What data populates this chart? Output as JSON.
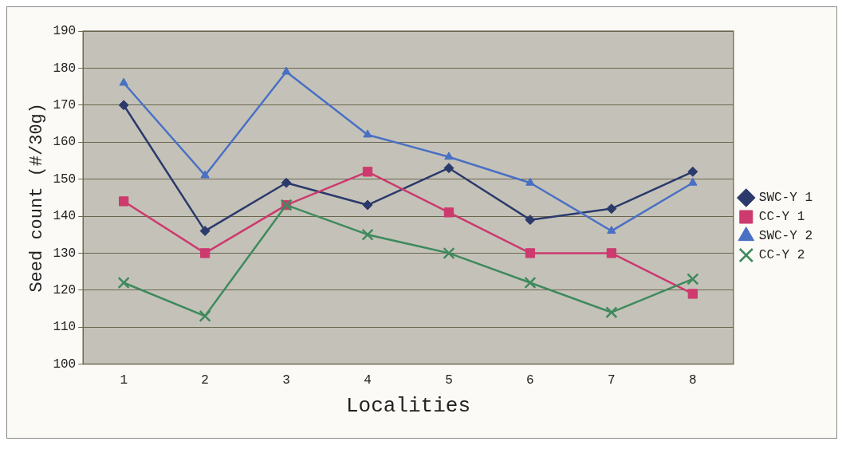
{
  "chart_data": {
    "type": "line",
    "xlabel": "Localities",
    "ylabel": "Seed count (#/30g)",
    "categories": [
      "1",
      "2",
      "3",
      "4",
      "5",
      "6",
      "7",
      "8"
    ],
    "series": [
      {
        "name": "SWC-Y 1",
        "color": "#2b3a6b",
        "marker": "diamond",
        "values": [
          170,
          136,
          149,
          143,
          153,
          139,
          142,
          152
        ]
      },
      {
        "name": "CC-Y 1",
        "color": "#cc3a6e",
        "marker": "square",
        "values": [
          144,
          130,
          143,
          152,
          141,
          130,
          130,
          119
        ]
      },
      {
        "name": "SWC-Y 2",
        "color": "#4a70c4",
        "marker": "triangle",
        "values": [
          176,
          151,
          179,
          162,
          156,
          149,
          136,
          149
        ]
      },
      {
        "name": "CC-Y 2",
        "color": "#3f8a5e",
        "marker": "cross",
        "values": [
          122,
          113,
          143,
          135,
          130,
          122,
          114,
          123
        ]
      }
    ],
    "ylim": [
      100,
      190
    ],
    "yticks": [
      100,
      110,
      120,
      130,
      140,
      150,
      160,
      170,
      180,
      190
    ],
    "grid": "y",
    "legend": "right",
    "line_style": "solid"
  }
}
